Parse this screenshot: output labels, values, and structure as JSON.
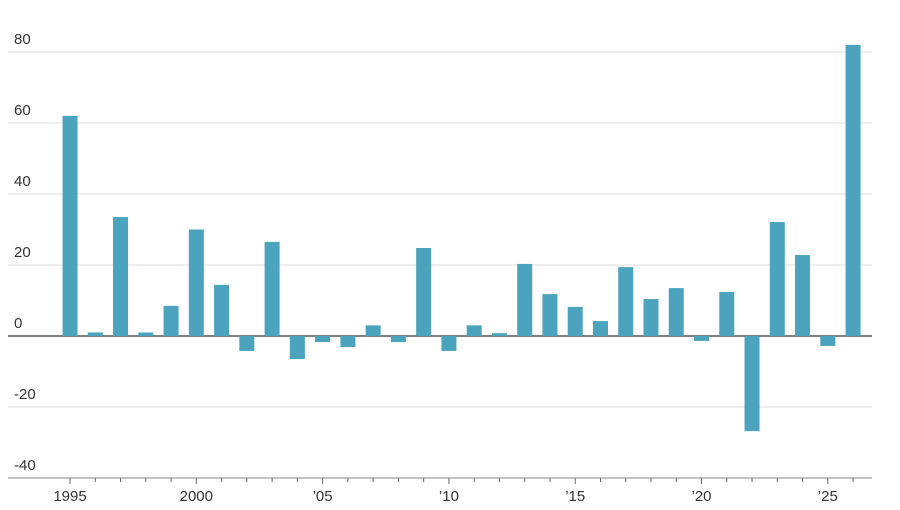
{
  "chart_data": {
    "type": "bar",
    "categories": [
      "1995",
      null,
      null,
      null,
      null,
      "2000",
      null,
      null,
      null,
      null,
      "’05",
      null,
      null,
      null,
      null,
      "’10",
      null,
      null,
      null,
      null,
      "’15",
      null,
      null,
      null,
      null,
      "’20",
      null,
      null,
      null,
      null,
      "’25",
      null
    ],
    "values": [
      62,
      1,
      33.5,
      1,
      8.5,
      30,
      14.4,
      -4.2,
      26.5,
      -6.5,
      -1.7,
      -3.1,
      3,
      -1.7,
      24.8,
      -4.2,
      3,
      0.8,
      20.3,
      11.8,
      8.2,
      4.2,
      19.4,
      10.4,
      13.5,
      -1.4,
      12.4,
      -26.8,
      32.1,
      22.8,
      -2.8,
      82
    ],
    "color": "#4ba3bd",
    "ylim": [
      -40,
      90
    ],
    "yticks": [
      -40,
      -20,
      0,
      20,
      40,
      60,
      80
    ],
    "grid": true
  }
}
